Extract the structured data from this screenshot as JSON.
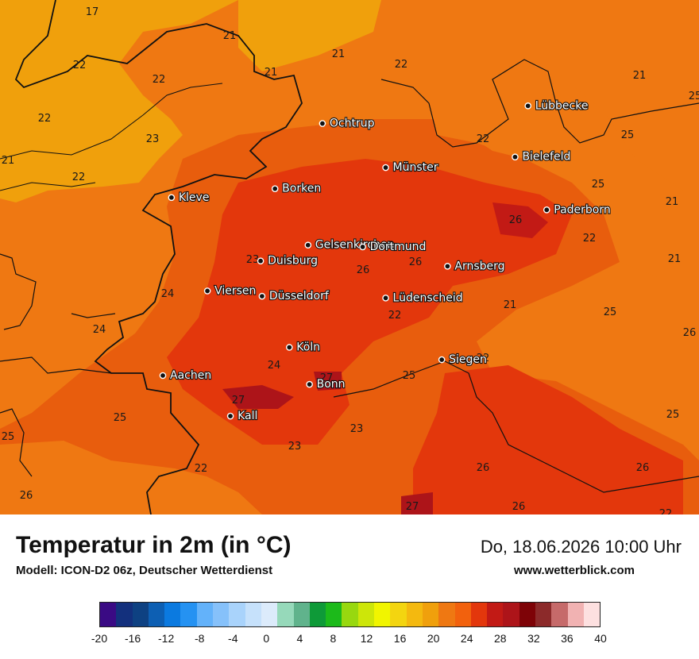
{
  "map": {
    "cities": [
      {
        "name": "Lübbecke",
        "lon": 8.62,
        "lat": 52.31
      },
      {
        "name": "Ochtrup",
        "lon": 7.19,
        "lat": 52.21
      },
      {
        "name": "Bielefeld",
        "lon": 8.53,
        "lat": 52.02
      },
      {
        "name": "Münster",
        "lon": 7.63,
        "lat": 51.96
      },
      {
        "name": "Borken",
        "lon": 6.86,
        "lat": 51.84
      },
      {
        "name": "Kleve",
        "lon": 6.14,
        "lat": 51.79
      },
      {
        "name": "Paderborn",
        "lon": 8.75,
        "lat": 51.72
      },
      {
        "name": "Gelsenkirchen",
        "lon": 7.09,
        "lat": 51.52
      },
      {
        "name": "Dortmund",
        "lon": 7.47,
        "lat": 51.51
      },
      {
        "name": "Duisburg",
        "lon": 6.76,
        "lat": 51.43
      },
      {
        "name": "Arnsberg",
        "lon": 8.06,
        "lat": 51.4
      },
      {
        "name": "Viersen",
        "lon": 6.39,
        "lat": 51.26
      },
      {
        "name": "Düsseldorf",
        "lon": 6.77,
        "lat": 51.23
      },
      {
        "name": "Lüdenscheid",
        "lon": 7.63,
        "lat": 51.22
      },
      {
        "name": "Köln",
        "lon": 6.96,
        "lat": 50.94
      },
      {
        "name": "Siegen",
        "lon": 8.02,
        "lat": 50.87
      },
      {
        "name": "Aachen",
        "lon": 6.08,
        "lat": 50.78
      },
      {
        "name": "Bonn",
        "lon": 7.1,
        "lat": 50.73
      },
      {
        "name": "Kall",
        "lon": 6.55,
        "lat": 50.55
      }
    ],
    "temperature_values": [
      "17",
      "21",
      "21",
      "21",
      "22",
      "22",
      "22",
      "22",
      "23",
      "22",
      "22",
      "21",
      "21",
      "25",
      "25",
      "25",
      "21",
      "26",
      "22",
      "21",
      "23",
      "26",
      "26",
      "26",
      "24",
      "24",
      "21",
      "22",
      "25",
      "24",
      "22",
      "27",
      "25",
      "23",
      "27",
      "25",
      "25",
      "25",
      "23",
      "26",
      "26",
      "22",
      "26",
      "27",
      "26",
      "22"
    ]
  },
  "title": "Temperatur in 2m (in °C)",
  "subtitle": "Modell: ICON-D2 06z, Deutscher Wetterdienst",
  "datetime": "Do, 18.06.2026 10:00 Uhr",
  "website": "www.wetterblick.com",
  "legend": {
    "ticks": [
      "-20",
      "-16",
      "-12",
      "-8",
      "-4",
      "0",
      "4",
      "8",
      "12",
      "16",
      "20",
      "24",
      "28",
      "32",
      "36",
      "40"
    ],
    "colors": [
      "#3a0a84",
      "#13307d",
      "#0e4182",
      "#0d5fb3",
      "#0b7ae0",
      "#2592f2",
      "#63b2fa",
      "#86c1fa",
      "#a9d3fb",
      "#c6e1fb",
      "#dcebfb",
      "#96d9ba",
      "#60b38c",
      "#0e9a38",
      "#1cba1a",
      "#98d80f",
      "#cde609",
      "#f1f500",
      "#f3d510",
      "#f4b90f",
      "#f0a00c",
      "#ef7812",
      "#f2610d",
      "#e3370c",
      "#c21a15",
      "#ad1419",
      "#7e0307",
      "#8c2a2a",
      "#c66a6a",
      "#f1b2b2",
      "#fde0e0"
    ]
  }
}
